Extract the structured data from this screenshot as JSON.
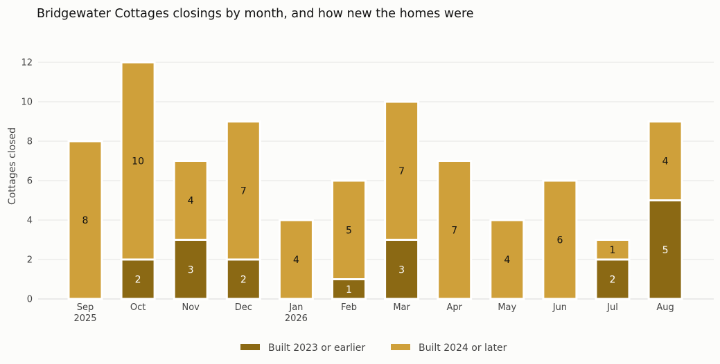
{
  "chart_data": {
    "type": "bar",
    "stacked": true,
    "title": "Bridgewater Cottages closings by month, and how new the homes were",
    "ylabel": "Cottages closed",
    "xlabel": "",
    "ylim": [
      0,
      12
    ],
    "yticks": [
      0,
      2,
      4,
      6,
      8,
      10,
      12
    ],
    "grid": true,
    "legend_position": "bottom-center",
    "categories": [
      [
        "Sep",
        "2025"
      ],
      [
        "Oct"
      ],
      [
        "Nov"
      ],
      [
        "Dec"
      ],
      [
        "Jan",
        "2026"
      ],
      [
        "Feb"
      ],
      [
        "Mar"
      ],
      [
        "Apr"
      ],
      [
        "May"
      ],
      [
        "Jun"
      ],
      [
        "Jul"
      ],
      [
        "Aug"
      ]
    ],
    "series": [
      {
        "name": "Built 2023 or earlier",
        "color": "#8b6914",
        "label_color": "#ffffff",
        "values": [
          0,
          2,
          3,
          2,
          0,
          1,
          3,
          0,
          0,
          0,
          2,
          5
        ]
      },
      {
        "name": "Built 2024 or later",
        "color": "#cfa03a",
        "label_color": "#111111",
        "values": [
          8,
          10,
          4,
          7,
          4,
          5,
          7,
          7,
          4,
          6,
          1,
          4
        ]
      }
    ]
  }
}
